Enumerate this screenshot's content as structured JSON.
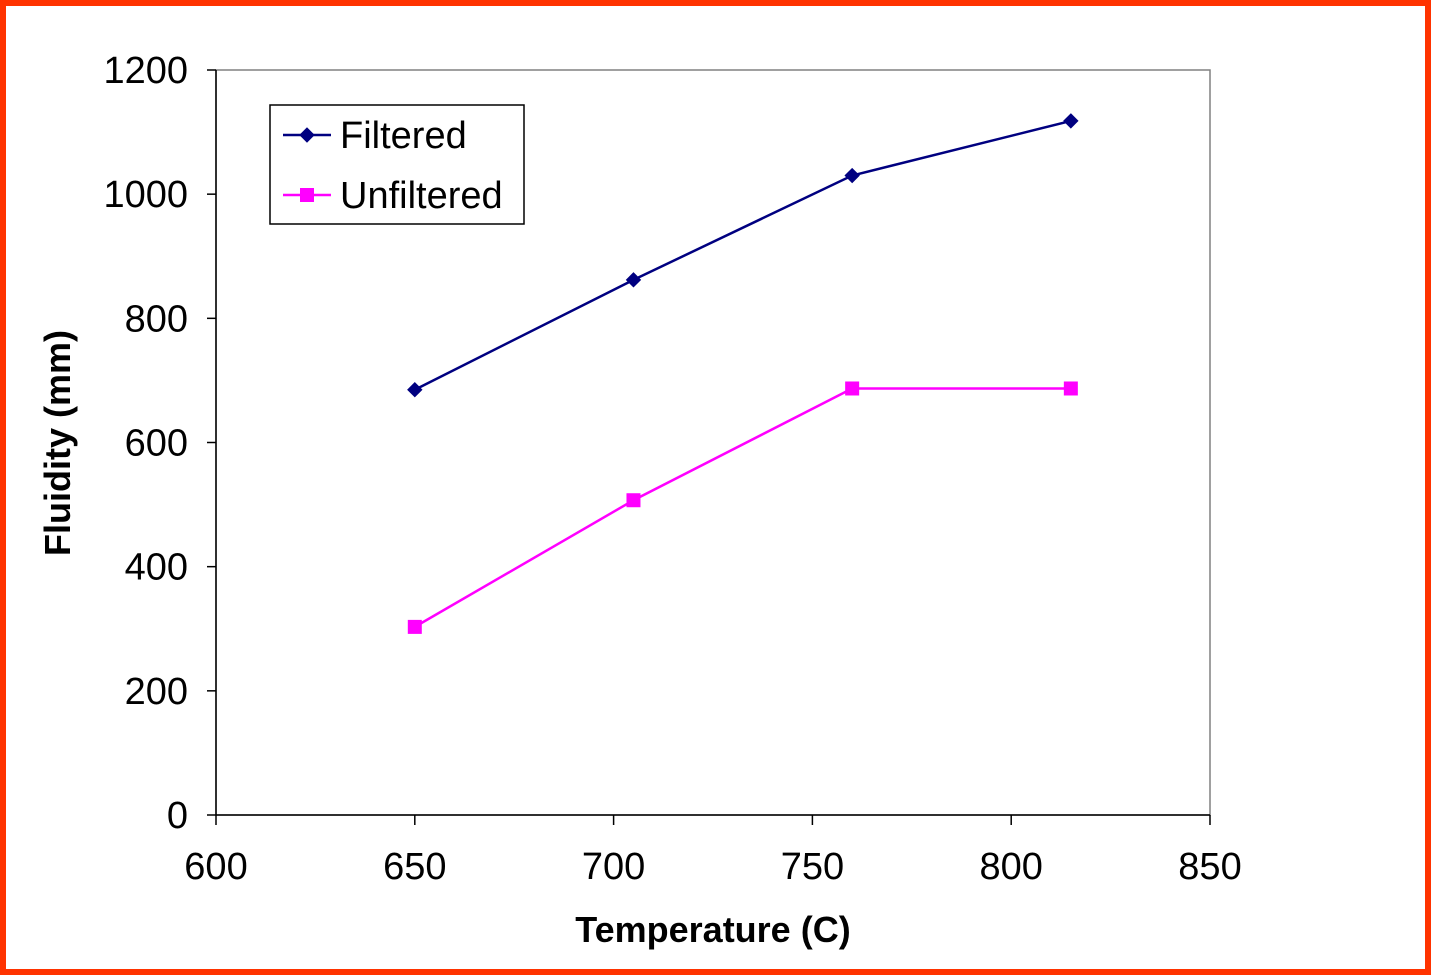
{
  "chart_data": {
    "type": "line",
    "title": "",
    "xlabel": "Temperature (C)",
    "ylabel": "Fluidity (mm)",
    "xlim": [
      600,
      850
    ],
    "ylim": [
      0,
      1200
    ],
    "xticks": [
      "600",
      "650",
      "700",
      "750",
      "800",
      "850"
    ],
    "yticks": [
      "0",
      "200",
      "400",
      "600",
      "800",
      "1000",
      "1200"
    ],
    "grid": false,
    "legend_position": "top-left",
    "series": [
      {
        "name": "Filtered",
        "color": "#000080",
        "marker": "diamond",
        "x": [
          650,
          705,
          760,
          815
        ],
        "y": [
          685,
          862,
          1030,
          1118
        ]
      },
      {
        "name": "Unfiltered",
        "color": "#ff00ff",
        "marker": "square",
        "x": [
          650,
          705,
          760,
          815
        ],
        "y": [
          303,
          507,
          687,
          687
        ]
      }
    ]
  },
  "frame_color": "#ff3300"
}
